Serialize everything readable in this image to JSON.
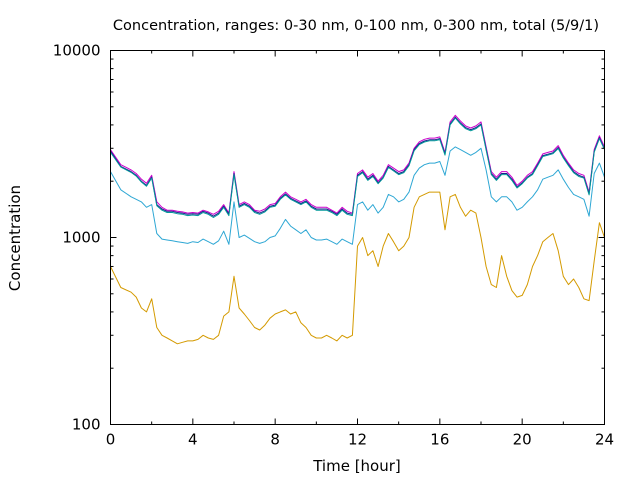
{
  "chart_data": {
    "type": "line",
    "title": "Concentration, ranges: 0-30 nm, 0-100 nm, 0-300 nm, total (5/9/1)",
    "xlabel": "Time [hour]",
    "ylabel": "Concentration",
    "xlim": [
      0,
      24
    ],
    "ylim": [
      100,
      10000
    ],
    "yscale": "log",
    "grid": false,
    "x_ticks": [
      "0",
      "4",
      "8",
      "12",
      "16",
      "20",
      "24"
    ],
    "y_ticks": [
      "100",
      "1000",
      "10000"
    ],
    "x": [
      0,
      0.5,
      1,
      1.25,
      1.5,
      1.75,
      2,
      2.25,
      2.5,
      2.75,
      3,
      3.25,
      3.5,
      3.75,
      4,
      4.25,
      4.5,
      4.75,
      5,
      5.25,
      5.5,
      5.75,
      6,
      6.25,
      6.5,
      6.75,
      7,
      7.25,
      7.5,
      7.75,
      8,
      8.25,
      8.5,
      8.75,
      9,
      9.25,
      9.5,
      9.75,
      10,
      10.25,
      10.5,
      10.75,
      11,
      11.25,
      11.5,
      11.75,
      12,
      12.25,
      12.5,
      12.75,
      13,
      13.25,
      13.5,
      13.75,
      14,
      14.25,
      14.5,
      14.75,
      15,
      15.25,
      15.5,
      15.75,
      16,
      16.25,
      16.5,
      16.75,
      17,
      17.25,
      17.5,
      17.75,
      18,
      18.25,
      18.5,
      18.75,
      19,
      19.25,
      19.5,
      19.75,
      20,
      20.25,
      20.5,
      20.75,
      21,
      21.25,
      21.5,
      21.75,
      22,
      22.25,
      22.5,
      22.75,
      23,
      23.25,
      23.5,
      23.75,
      24
    ],
    "series": [
      {
        "color": "#cc00cc",
        "values": [
          2950,
          2450,
          2300,
          2200,
          2050,
          1950,
          2150,
          1550,
          1450,
          1400,
          1400,
          1380,
          1370,
          1350,
          1360,
          1350,
          1400,
          1370,
          1330,
          1380,
          1500,
          1350,
          2250,
          1500,
          1550,
          1500,
          1400,
          1380,
          1420,
          1500,
          1520,
          1650,
          1750,
          1650,
          1600,
          1550,
          1600,
          1500,
          1450,
          1450,
          1450,
          1400,
          1350,
          1450,
          1380,
          1350,
          2200,
          2300,
          2100,
          2200,
          2000,
          2150,
          2450,
          2350,
          2250,
          2300,
          2500,
          3000,
          3250,
          3350,
          3400,
          3400,
          3450,
          2850,
          4150,
          4500,
          4200,
          3950,
          3850,
          3950,
          4150,
          3050,
          2250,
          2100,
          2250,
          2250,
          2100,
          1900,
          2000,
          2150,
          2250,
          2500,
          2800,
          2850,
          2900,
          3100,
          2750,
          2500,
          2300,
          2200,
          2150,
          1750,
          2950,
          3500,
          3050
        ],
        "points": 95
      },
      {
        "color": "#1c1c8c",
        "values": [
          2900,
          2400,
          2250,
          2150,
          2000,
          1900,
          2100,
          1500,
          1420,
          1380,
          1380,
          1360,
          1350,
          1330,
          1340,
          1330,
          1380,
          1350,
          1300,
          1350,
          1470,
          1330,
          2200,
          1470,
          1520,
          1470,
          1380,
          1350,
          1390,
          1470,
          1490,
          1620,
          1710,
          1620,
          1570,
          1520,
          1570,
          1470,
          1420,
          1420,
          1420,
          1380,
          1330,
          1420,
          1350,
          1330,
          2150,
          2250,
          2050,
          2150,
          1960,
          2100,
          2400,
          2300,
          2200,
          2250,
          2450,
          2950,
          3180,
          3280,
          3330,
          3330,
          3380,
          2800,
          4050,
          4400,
          4100,
          3870,
          3770,
          3870,
          4050,
          2980,
          2200,
          2050,
          2200,
          2200,
          2050,
          1860,
          1960,
          2100,
          2200,
          2450,
          2740,
          2790,
          2840,
          3030,
          2690,
          2450,
          2250,
          2150,
          2100,
          1710,
          2890,
          3420,
          2980
        ],
        "points": 95
      },
      {
        "color": "#009999",
        "values": [
          2850,
          2380,
          2230,
          2130,
          1980,
          1880,
          2080,
          1480,
          1400,
          1360,
          1360,
          1340,
          1330,
          1310,
          1320,
          1310,
          1360,
          1330,
          1280,
          1330,
          1450,
          1310,
          2170,
          1450,
          1500,
          1450,
          1360,
          1330,
          1370,
          1450,
          1470,
          1600,
          1690,
          1600,
          1550,
          1500,
          1550,
          1450,
          1400,
          1400,
          1400,
          1360,
          1310,
          1400,
          1330,
          1310,
          2120,
          2220,
          2020,
          2120,
          1940,
          2080,
          2370,
          2270,
          2170,
          2220,
          2420,
          2910,
          3140,
          3240,
          3290,
          3290,
          3340,
          2760,
          4000,
          4350,
          4050,
          3820,
          3720,
          3820,
          4000,
          2940,
          2170,
          2020,
          2170,
          2170,
          2020,
          1840,
          1940,
          2080,
          2170,
          2420,
          2710,
          2760,
          2810,
          2990,
          2660,
          2420,
          2220,
          2120,
          2080,
          1690,
          2860,
          3380,
          2950
        ],
        "points": 95
      },
      {
        "color": "#2ea7d4",
        "values": [
          2250,
          1800,
          1650,
          1600,
          1550,
          1450,
          1500,
          1050,
          980,
          970,
          960,
          950,
          940,
          930,
          950,
          940,
          980,
          950,
          920,
          960,
          1080,
          920,
          1550,
          1000,
          1030,
          990,
          950,
          930,
          950,
          1000,
          1020,
          1120,
          1250,
          1150,
          1100,
          1050,
          1100,
          1000,
          970,
          970,
          980,
          950,
          920,
          980,
          950,
          920,
          1500,
          1550,
          1400,
          1500,
          1350,
          1450,
          1700,
          1650,
          1550,
          1600,
          1750,
          2150,
          2350,
          2450,
          2500,
          2500,
          2550,
          2150,
          2900,
          3050,
          2950,
          2850,
          2750,
          2850,
          3000,
          2300,
          1650,
          1550,
          1650,
          1650,
          1550,
          1400,
          1450,
          1550,
          1650,
          1800,
          2050,
          2100,
          2150,
          2300,
          2050,
          1850,
          1700,
          1650,
          1600,
          1300,
          2200,
          2500,
          2100
        ],
        "points": 95
      },
      {
        "color": "#d49a00",
        "values": [
          700,
          540,
          510,
          480,
          420,
          400,
          470,
          330,
          300,
          290,
          280,
          270,
          275,
          280,
          280,
          285,
          300,
          290,
          285,
          300,
          380,
          400,
          620,
          420,
          390,
          360,
          330,
          320,
          340,
          370,
          390,
          400,
          410,
          390,
          400,
          350,
          330,
          300,
          290,
          290,
          300,
          290,
          280,
          300,
          290,
          300,
          900,
          1000,
          800,
          850,
          700,
          900,
          1050,
          950,
          850,
          900,
          1000,
          1450,
          1650,
          1700,
          1750,
          1750,
          1750,
          1100,
          1650,
          1700,
          1450,
          1300,
          1400,
          1350,
          1000,
          700,
          560,
          540,
          800,
          620,
          520,
          480,
          490,
          560,
          700,
          800,
          950,
          1000,
          1050,
          850,
          620,
          560,
          600,
          540,
          470,
          460,
          750,
          1200,
          1000
        ],
        "points": 95
      }
    ]
  }
}
